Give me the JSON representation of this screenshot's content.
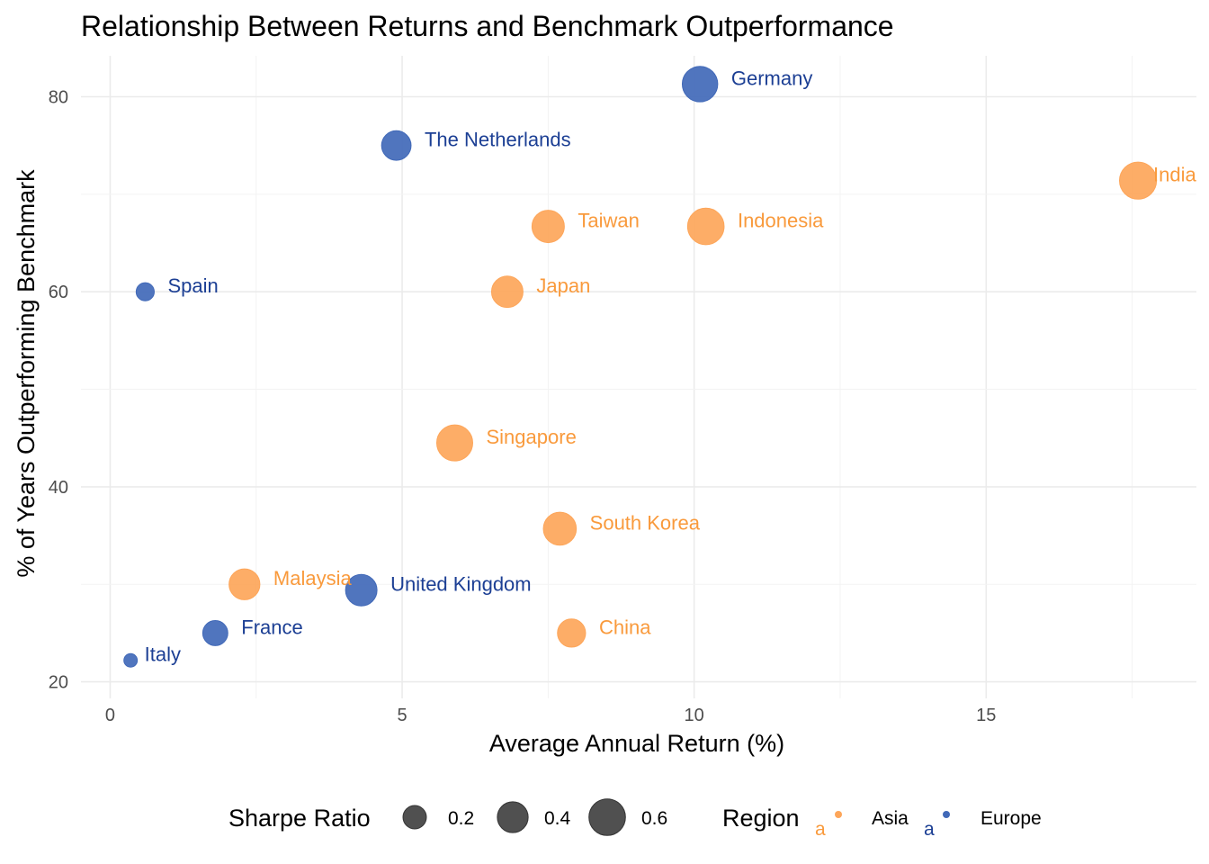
{
  "chart_data": {
    "type": "scatter",
    "title": "Relationship Between Returns and Benchmark Outperformance",
    "xlabel": "Average Annual Return (%)",
    "ylabel": "% of Years Outperforming Benchmark",
    "xlim": [
      -0.5,
      18.6
    ],
    "ylim": [
      18.3,
      84.2
    ],
    "x_ticks": [
      0,
      5,
      10,
      15
    ],
    "y_ticks": [
      20,
      40,
      60,
      80
    ],
    "grid": true,
    "legend_position": "bottom",
    "size_legend": {
      "title": "Sharpe Ratio",
      "entries": [
        {
          "label": "0.2",
          "value": 0.2
        },
        {
          "label": "0.4",
          "value": 0.4
        },
        {
          "label": "0.6",
          "value": 0.6
        }
      ]
    },
    "color_legend": {
      "title": "Region",
      "key_letter": "a",
      "entries": [
        {
          "label": "Asia",
          "color": "#FDA65A"
        },
        {
          "label": "Europe",
          "color": "#4169B8"
        }
      ]
    },
    "series": [
      {
        "name": "Asia",
        "color": "#FDA65A",
        "label_color": "#F99A3C",
        "points": [
          {
            "label": "India",
            "x": 17.6,
            "y": 71.4,
            "sharpe": 0.62
          },
          {
            "label": "Indonesia",
            "x": 10.2,
            "y": 66.7,
            "sharpe": 0.6
          },
          {
            "label": "Taiwan",
            "x": 7.5,
            "y": 66.7,
            "sharpe": 0.45
          },
          {
            "label": "Japan",
            "x": 6.8,
            "y": 60.0,
            "sharpe": 0.42
          },
          {
            "label": "Singapore",
            "x": 5.9,
            "y": 44.5,
            "sharpe": 0.58
          },
          {
            "label": "South Korea",
            "x": 7.7,
            "y": 35.7,
            "sharpe": 0.47
          },
          {
            "label": "Malaysia",
            "x": 2.3,
            "y": 30.0,
            "sharpe": 0.4
          },
          {
            "label": "China",
            "x": 7.9,
            "y": 25.0,
            "sharpe": 0.32
          }
        ]
      },
      {
        "name": "Europe",
        "color": "#4169B8",
        "label_color": "#1C3F94",
        "points": [
          {
            "label": "Germany",
            "x": 10.1,
            "y": 81.3,
            "sharpe": 0.56
          },
          {
            "label": "The Netherlands",
            "x": 4.9,
            "y": 75.0,
            "sharpe": 0.36
          },
          {
            "label": "Spain",
            "x": 0.6,
            "y": 60.0,
            "sharpe": 0.1
          },
          {
            "label": "United Kingdom",
            "x": 4.3,
            "y": 29.4,
            "sharpe": 0.42
          },
          {
            "label": "France",
            "x": 1.8,
            "y": 25.0,
            "sharpe": 0.24
          },
          {
            "label": "Italy",
            "x": 0.35,
            "y": 22.2,
            "sharpe": 0.04
          }
        ]
      }
    ]
  }
}
